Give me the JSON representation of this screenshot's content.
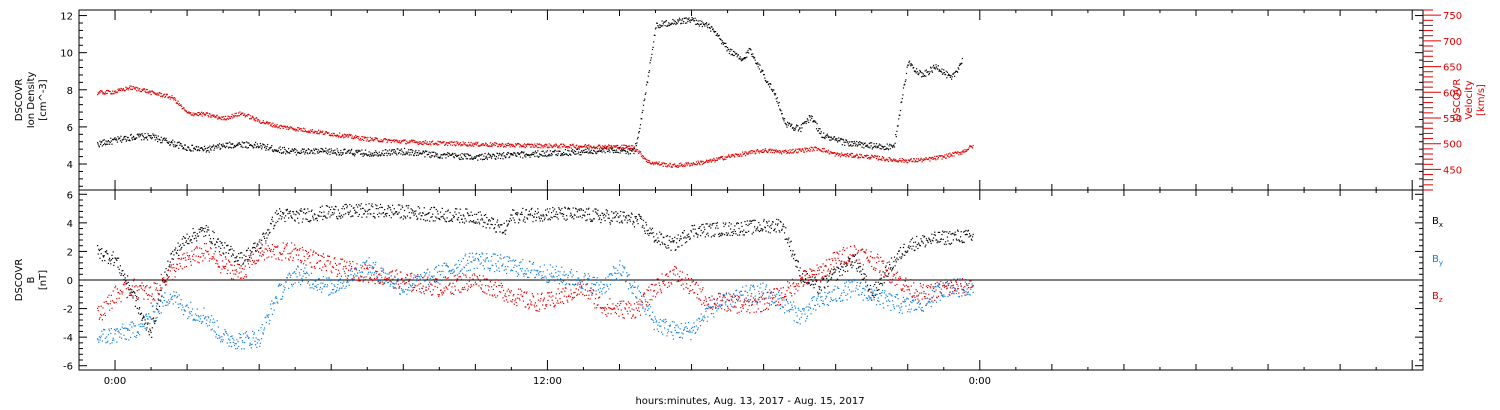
{
  "chart_data": [
    {
      "type": "scatter",
      "panel": "plasma",
      "ylabel_left": [
        "DSCOVR",
        "Ion Density",
        "[cm^-3]"
      ],
      "ylabel_right": [
        "DSCOVR",
        "Velocity",
        "[km/s]"
      ],
      "ylim_left": [
        2.6,
        12.3
      ],
      "ylim_right": [
        410,
        760
      ],
      "yticks_left": [
        4,
        6,
        8,
        10,
        12
      ],
      "yticks_right": [
        450,
        500,
        550,
        600,
        650,
        700,
        750
      ],
      "series": [
        {
          "axis": "left",
          "color": "#000000",
          "points": [
            [
              -0.5,
              5.1
            ],
            [
              0,
              5.3
            ],
            [
              0.5,
              5.5
            ],
            [
              1,
              5.5
            ],
            [
              1.5,
              5.2
            ],
            [
              2,
              4.9
            ],
            [
              2.5,
              4.8
            ],
            [
              3,
              5.0
            ],
            [
              3.5,
              5.1
            ],
            [
              4,
              5.0
            ],
            [
              4.5,
              4.8
            ],
            [
              5,
              4.7
            ],
            [
              6,
              4.7
            ],
            [
              7,
              4.6
            ],
            [
              8,
              4.7
            ],
            [
              9,
              4.5
            ],
            [
              10,
              4.4
            ],
            [
              11,
              4.5
            ],
            [
              12,
              4.6
            ],
            [
              13,
              4.7
            ],
            [
              14,
              4.8
            ],
            [
              14.4,
              4.7
            ],
            [
              14.6,
              6.5
            ],
            [
              15,
              11.5
            ],
            [
              15.5,
              11.7
            ],
            [
              16,
              11.8
            ],
            [
              16.5,
              11.4
            ],
            [
              17,
              10.2
            ],
            [
              17.4,
              9.6
            ],
            [
              17.6,
              10.2
            ],
            [
              18,
              8.8
            ],
            [
              18.3,
              7.8
            ],
            [
              18.6,
              6.2
            ],
            [
              19,
              5.9
            ],
            [
              19.3,
              6.6
            ],
            [
              19.6,
              5.6
            ],
            [
              20,
              5.3
            ],
            [
              20.5,
              5.1
            ],
            [
              21,
              5.0
            ],
            [
              21.6,
              4.9
            ],
            [
              22,
              9.5
            ],
            [
              22.4,
              8.8
            ],
            [
              22.8,
              9.3
            ],
            [
              23.2,
              8.6
            ],
            [
              23.5,
              9.6
            ]
          ]
        },
        {
          "axis": "right",
          "color": "#e00000",
          "points": [
            [
              -0.5,
              600
            ],
            [
              0,
              602
            ],
            [
              0.4,
              610
            ],
            [
              0.8,
              605
            ],
            [
              1,
              600
            ],
            [
              1.3,
              596
            ],
            [
              1.6,
              590
            ],
            [
              2,
              560
            ],
            [
              2.5,
              558
            ],
            [
              3,
              550
            ],
            [
              3.5,
              560
            ],
            [
              4,
              545
            ],
            [
              4.5,
              535
            ],
            [
              5,
              530
            ],
            [
              6,
              520
            ],
            [
              7,
              510
            ],
            [
              8,
              505
            ],
            [
              9,
              502
            ],
            [
              10,
              500
            ],
            [
              11,
              498
            ],
            [
              12,
              497
            ],
            [
              13,
              496
            ],
            [
              14,
              495
            ],
            [
              14.4,
              494
            ],
            [
              14.8,
              465
            ],
            [
              15.5,
              458
            ],
            [
              16,
              462
            ],
            [
              16.5,
              467
            ],
            [
              17,
              476
            ],
            [
              17.5,
              482
            ],
            [
              18,
              488
            ],
            [
              18.5,
              485
            ],
            [
              19,
              488
            ],
            [
              19.5,
              492
            ],
            [
              20,
              480
            ],
            [
              20.5,
              478
            ],
            [
              21,
              475
            ],
            [
              21.5,
              470
            ],
            [
              22,
              468
            ],
            [
              22.5,
              470
            ],
            [
              23,
              476
            ],
            [
              23.5,
              485
            ],
            [
              23.8,
              497
            ]
          ]
        }
      ]
    },
    {
      "type": "scatter",
      "panel": "magnetic-field",
      "ylabel": [
        "DSCOVR",
        "B",
        "[nT]"
      ],
      "ylim": [
        -6.3,
        6.3
      ],
      "yticks": [
        -6,
        -4,
        -2,
        0,
        2,
        4,
        6
      ],
      "zero_line": true,
      "legend_position": "right",
      "series": [
        {
          "name": "Bx",
          "label_main": "B",
          "label_sub": "x",
          "color": "#000000",
          "points": [
            [
              -0.5,
              2.0
            ],
            [
              0,
              1.5
            ],
            [
              0.5,
              -1.0
            ],
            [
              0.8,
              -3.0
            ],
            [
              1,
              -3.5
            ],
            [
              1.5,
              1.5
            ],
            [
              2,
              3.0
            ],
            [
              2.5,
              3.5
            ],
            [
              3,
              2.2
            ],
            [
              3.5,
              1.5
            ],
            [
              4,
              2.5
            ],
            [
              4.5,
              4.6
            ],
            [
              5,
              4.5
            ],
            [
              6,
              4.8
            ],
            [
              7,
              4.9
            ],
            [
              8,
              4.8
            ],
            [
              9,
              4.6
            ],
            [
              10,
              4.5
            ],
            [
              10.8,
              3.5
            ],
            [
              11,
              4.5
            ],
            [
              12,
              4.7
            ],
            [
              13,
              4.6
            ],
            [
              14,
              4.4
            ],
            [
              14.5,
              4.2
            ],
            [
              15,
              3.0
            ],
            [
              15.5,
              2.5
            ],
            [
              16,
              3.5
            ],
            [
              17,
              3.6
            ],
            [
              18,
              3.8
            ],
            [
              18.5,
              3.9
            ],
            [
              18.8,
              2.0
            ],
            [
              19,
              0.5
            ],
            [
              19.5,
              -0.5
            ],
            [
              20,
              0.5
            ],
            [
              20.5,
              1.5
            ],
            [
              21,
              -1.0
            ],
            [
              21.5,
              1.0
            ],
            [
              22,
              2.5
            ],
            [
              22.5,
              2.8
            ],
            [
              23,
              3.0
            ],
            [
              23.5,
              3.1
            ],
            [
              23.8,
              3.0
            ]
          ]
        },
        {
          "name": "By",
          "label_main": "B",
          "label_sub": "y",
          "color": "#1080e0",
          "points": [
            [
              -0.5,
              -4.0
            ],
            [
              0,
              -3.8
            ],
            [
              0.5,
              -3.5
            ],
            [
              1,
              -2.5
            ],
            [
              1.5,
              -1.0
            ],
            [
              2,
              -2.0
            ],
            [
              2.5,
              -2.5
            ],
            [
              3,
              -4.0
            ],
            [
              3.5,
              -4.2
            ],
            [
              4,
              -4.0
            ],
            [
              4.5,
              -1.0
            ],
            [
              5,
              0.5
            ],
            [
              6,
              -0.5
            ],
            [
              7,
              1.0
            ],
            [
              8,
              -0.5
            ],
            [
              9,
              0.5
            ],
            [
              10,
              1.5
            ],
            [
              11,
              1.0
            ],
            [
              12,
              0.5
            ],
            [
              13,
              0.0
            ],
            [
              13.5,
              -0.5
            ],
            [
              14,
              0.8
            ],
            [
              14.5,
              -1.0
            ],
            [
              15,
              -3.0
            ],
            [
              15.5,
              -3.5
            ],
            [
              16,
              -3.5
            ],
            [
              16.5,
              -2.0
            ],
            [
              17,
              -1.5
            ],
            [
              17.5,
              -1.0
            ],
            [
              18,
              -0.8
            ],
            [
              18.5,
              -1.5
            ],
            [
              19,
              -2.5
            ],
            [
              19.5,
              -1.5
            ],
            [
              20,
              -1.0
            ],
            [
              20.5,
              -0.5
            ],
            [
              21,
              -1.0
            ],
            [
              21.5,
              -1.5
            ],
            [
              22,
              -1.8
            ],
            [
              22.5,
              -1.5
            ],
            [
              23,
              -0.5
            ],
            [
              23.5,
              -0.5
            ],
            [
              23.8,
              -0.3
            ]
          ]
        },
        {
          "name": "Bz",
          "label_main": "B",
          "label_sub": "z",
          "color": "#e00000",
          "points": [
            [
              -0.5,
              -2.5
            ],
            [
              0,
              -1.0
            ],
            [
              0.5,
              -0.5
            ],
            [
              1,
              -1.0
            ],
            [
              1.5,
              0.5
            ],
            [
              2,
              1.5
            ],
            [
              2.5,
              2.0
            ],
            [
              3,
              1.0
            ],
            [
              3.5,
              0.5
            ],
            [
              4,
              2.0
            ],
            [
              4.5,
              2.0
            ],
            [
              5,
              2.0
            ],
            [
              6,
              1.0
            ],
            [
              7,
              0.5
            ],
            [
              8,
              0.0
            ],
            [
              9,
              -0.5
            ],
            [
              10,
              0.0
            ],
            [
              11,
              -1.0
            ],
            [
              11.5,
              -1.5
            ],
            [
              12,
              -1.5
            ],
            [
              13,
              -0.5
            ],
            [
              13.5,
              -1.8
            ],
            [
              14,
              -2.0
            ],
            [
              14.5,
              -2.0
            ],
            [
              15,
              -0.5
            ],
            [
              15.5,
              0.5
            ],
            [
              16,
              -0.5
            ],
            [
              16.5,
              -1.5
            ],
            [
              17,
              -1.5
            ],
            [
              17.5,
              -1.8
            ],
            [
              18,
              -1.5
            ],
            [
              18.5,
              -1.0
            ],
            [
              19,
              0.0
            ],
            [
              19.5,
              0.5
            ],
            [
              20,
              1.5
            ],
            [
              20.5,
              2.0
            ],
            [
              21,
              1.5
            ],
            [
              21.5,
              0.5
            ],
            [
              22,
              -0.5
            ],
            [
              22.5,
              -1.0
            ],
            [
              23,
              -0.5
            ],
            [
              23.5,
              -0.5
            ],
            [
              23.8,
              -0.2
            ]
          ]
        }
      ]
    }
  ],
  "x_axis": {
    "range_hours": [
      -1,
      36.3
    ],
    "tick_labels": [
      {
        "hour": 0,
        "label": "0:00"
      },
      {
        "hour": 12,
        "label": "12:00"
      },
      {
        "hour": 24,
        "label": "0:00"
      }
    ],
    "xlabel": "hours:minutes, Aug. 13, 2017 - Aug. 15, 2017"
  }
}
